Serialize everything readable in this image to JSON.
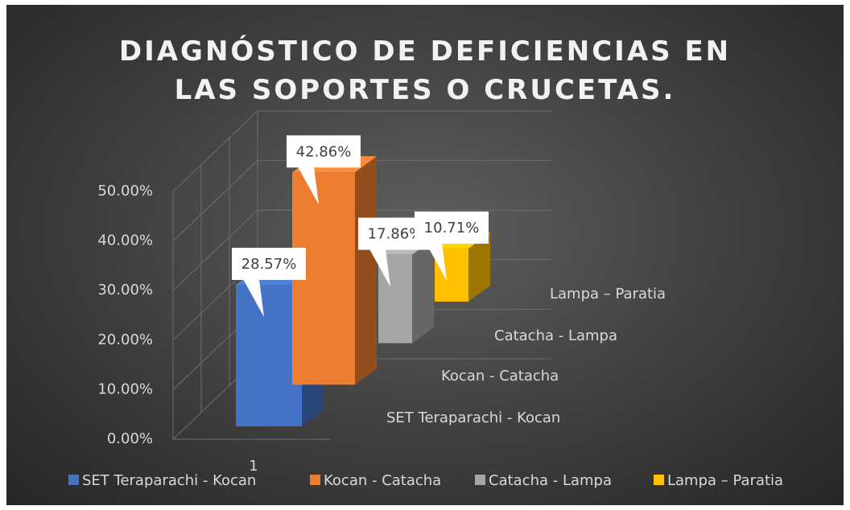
{
  "chart_data": {
    "type": "bar3d",
    "title": "DIAGNÓSTICO DE DEFICIENCIAS EN LAS SOPORTES O CRUCETAS.",
    "categories": [
      "1"
    ],
    "series": [
      {
        "name": "SET Teraparachi - Kocan",
        "color": "#4472c4",
        "values": [
          28.57
        ],
        "value_labels": [
          "28.57%"
        ]
      },
      {
        "name": "Kocan - Catacha",
        "color": "#ed7d31",
        "values": [
          42.86
        ],
        "value_labels": [
          "42.86%"
        ]
      },
      {
        "name": "Catacha - Lampa",
        "color": "#a5a5a5",
        "values": [
          17.86
        ],
        "value_labels": [
          "17.86%"
        ]
      },
      {
        "name": "Lampa – Paratia",
        "color": "#ffc000",
        "values": [
          10.71
        ],
        "value_labels": [
          "10.71%"
        ]
      }
    ],
    "ylim": [
      0,
      50
    ],
    "yticks": [
      {
        "value": 0,
        "label": "0.00%"
      },
      {
        "value": 10,
        "label": "10.00%"
      },
      {
        "value": 20,
        "label": "20.00%"
      },
      {
        "value": 30,
        "label": "30.00%"
      },
      {
        "value": 40,
        "label": "40.00%"
      },
      {
        "value": 50,
        "label": "50.00%"
      }
    ],
    "grid": true,
    "legend": "bottom"
  }
}
